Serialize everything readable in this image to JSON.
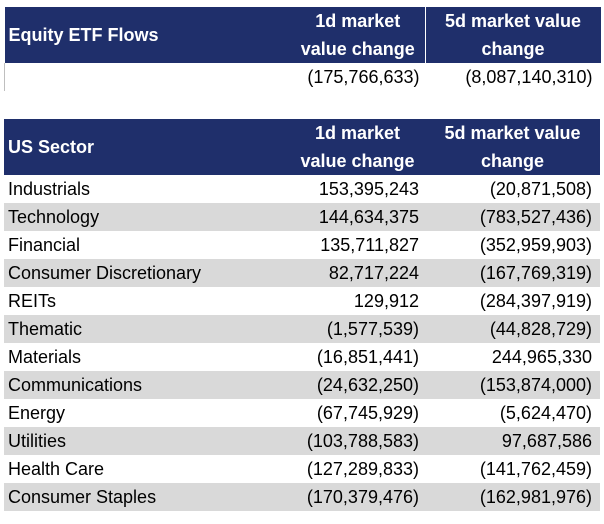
{
  "table1": {
    "header": {
      "label": "Equity ETF Flows",
      "col1": "1d market value change",
      "col2": "5d market value change"
    },
    "total": {
      "v1": "(175,766,633)",
      "v2": "(8,087,140,310)"
    }
  },
  "table2": {
    "header": {
      "label": "US Sector",
      "col1": "1d market value change",
      "col2": "5d market value change"
    },
    "rows": [
      {
        "name": "Industrials",
        "v1": "153,395,243",
        "v2": "(20,871,508)"
      },
      {
        "name": "Technology",
        "v1": "144,634,375",
        "v2": "(783,527,436)"
      },
      {
        "name": "Financial",
        "v1": "135,711,827",
        "v2": "(352,959,903)"
      },
      {
        "name": "Consumer Discretionary",
        "v1": "82,717,224",
        "v2": "(167,769,319)"
      },
      {
        "name": "REITs",
        "v1": "129,912",
        "v2": "(284,397,919)"
      },
      {
        "name": "Thematic",
        "v1": "(1,577,539)",
        "v2": "(44,828,729)"
      },
      {
        "name": "Materials",
        "v1": "(16,851,441)",
        "v2": "244,965,330"
      },
      {
        "name": "Communications",
        "v1": "(24,632,250)",
        "v2": "(153,874,000)"
      },
      {
        "name": "Energy",
        "v1": "(67,745,929)",
        "v2": "(5,624,470)"
      },
      {
        "name": "Utilities",
        "v1": "(103,788,583)",
        "v2": "97,687,586"
      },
      {
        "name": "Health Care",
        "v1": "(127,289,833)",
        "v2": "(141,762,459)"
      },
      {
        "name": "Consumer Staples",
        "v1": "(170,379,476)",
        "v2": "(162,981,976)"
      }
    ]
  },
  "colors": {
    "header_bg": "#1f2f6b",
    "header_text": "#ffffff",
    "band": "#d9d9d9"
  }
}
